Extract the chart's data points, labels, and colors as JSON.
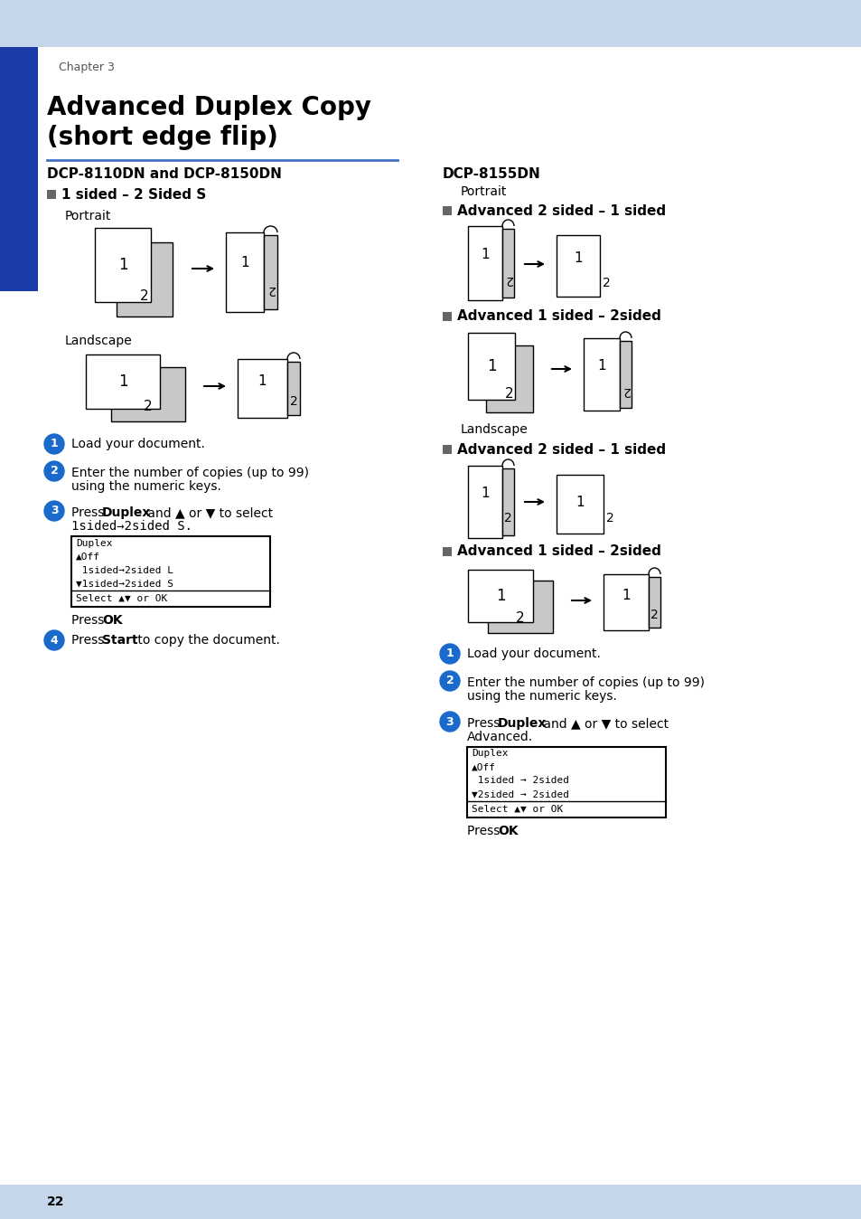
{
  "bg_color": "#ffffff",
  "header_bg": "#c5d5ea",
  "sidebar_color": "#1a3ca8",
  "title_line_color": "#4472c4",
  "title_line1": "Advanced Duplex Copy",
  "title_line2": "(short edge flip)",
  "chapter": "Chapter 3",
  "page_num": "22",
  "section1_title": "DCP-8110DN and DCP-8150DN",
  "section1_bullet": "1 sided – 2 Sided S",
  "section2_title": "DCP-8155DN",
  "section2_bullet1": "Advanced 2 sided – 1 sided",
  "section2_bullet2": "Advanced 1 sided – 2sided",
  "landscape_label": "Landscape",
  "portrait_label": "Portrait",
  "light_gray": "#c8c8c8",
  "blue_circle": "#1a6acc",
  "lcd_left_lines": [
    "Duplex",
    "▲Off",
    " 1sided→2sided L",
    "▼1sided→2sided S",
    "Select ▲▼ or OK"
  ],
  "lcd_right_lines": [
    "Duplex",
    "▲Off",
    " 1sided → 2sided",
    "▼2sided → 2sided",
    "Select ▲▼ or OK"
  ]
}
